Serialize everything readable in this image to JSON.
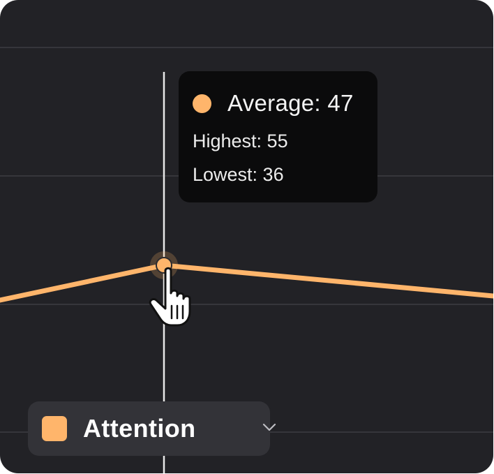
{
  "tooltip": {
    "average_label": "Average: 47",
    "highest_label": "Highest: 55",
    "lowest_label": "Lowest: 36",
    "dot_color": "#ffb56b"
  },
  "legend": {
    "label": "Attention",
    "swatch_color": "#ffb56b",
    "icon": "chevron-down-icon"
  },
  "chart": {
    "series_color": "#ffb56b",
    "background": "#222226",
    "gridline_color": "#3a3a3f",
    "crosshair_color": "#e6e6e6"
  },
  "pointer": {
    "icon": "hand-pointer-icon"
  }
}
